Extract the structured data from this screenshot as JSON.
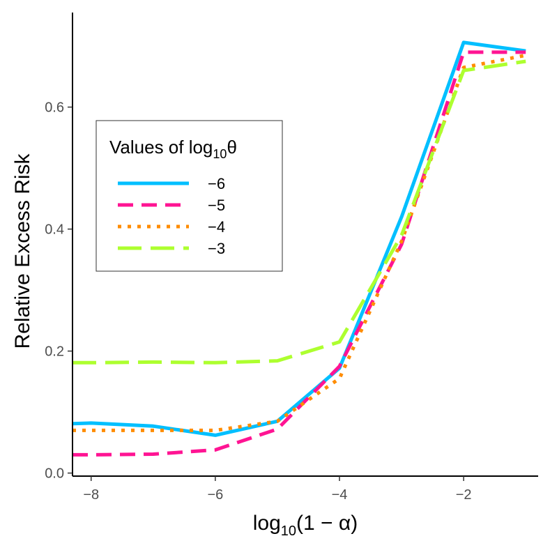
{
  "chart_data": {
    "type": "line",
    "title": "",
    "xlabel": {
      "prefix": "log",
      "sub": "10",
      "suffix": "(1 − α)"
    },
    "ylabel": "Relative Excess Risk",
    "xlim": [
      -8.3,
      -0.8
    ],
    "ylim": [
      -0.005,
      0.755
    ],
    "xticks": [
      -8,
      -6,
      -4,
      -2
    ],
    "xtick_labels": [
      "−8",
      "−6",
      "−4",
      "−2"
    ],
    "yticks": [
      0.0,
      0.2,
      0.4,
      0.6
    ],
    "ytick_labels": [
      "0.0",
      "0.2",
      "0.4",
      "0.6"
    ],
    "grid": false,
    "legend": {
      "title_prefix": "Values of log",
      "title_sub": "10",
      "title_suffix": "θ",
      "placement": "upper-left"
    },
    "series": [
      {
        "name": "−6",
        "color": "#00bfff",
        "dash": "solid",
        "points": [
          [
            -8.3,
            0.081
          ],
          [
            -8,
            0.082
          ],
          [
            -7,
            0.077
          ],
          [
            -6,
            0.062
          ],
          [
            -5,
            0.085
          ],
          [
            -4,
            0.172
          ],
          [
            -3,
            0.42
          ],
          [
            -2,
            0.706
          ],
          [
            -1,
            0.692
          ]
        ]
      },
      {
        "name": "−5",
        "color": "#ff1493",
        "dash": "dashed",
        "points": [
          [
            -8.3,
            0.03
          ],
          [
            -8,
            0.03
          ],
          [
            -7,
            0.031
          ],
          [
            -6,
            0.038
          ],
          [
            -5,
            0.072
          ],
          [
            -4,
            0.175
          ],
          [
            -3,
            0.375
          ],
          [
            -2,
            0.69
          ],
          [
            -1,
            0.69
          ]
        ]
      },
      {
        "name": "−4",
        "color": "#ff8c00",
        "dash": "dotted",
        "points": [
          [
            -8.3,
            0.07
          ],
          [
            -8,
            0.07
          ],
          [
            -7,
            0.07
          ],
          [
            -6,
            0.07
          ],
          [
            -5,
            0.085
          ],
          [
            -4,
            0.155
          ],
          [
            -3,
            0.38
          ],
          [
            -2,
            0.665
          ],
          [
            -1,
            0.685
          ]
        ]
      },
      {
        "name": "−3",
        "color": "#adff2f",
        "dash": "longdash",
        "points": [
          [
            -8.3,
            0.181
          ],
          [
            -8,
            0.181
          ],
          [
            -7,
            0.182
          ],
          [
            -6,
            0.181
          ],
          [
            -5,
            0.184
          ],
          [
            -4,
            0.215
          ],
          [
            -3,
            0.39
          ],
          [
            -2,
            0.66
          ],
          [
            -1,
            0.675
          ]
        ]
      }
    ]
  }
}
